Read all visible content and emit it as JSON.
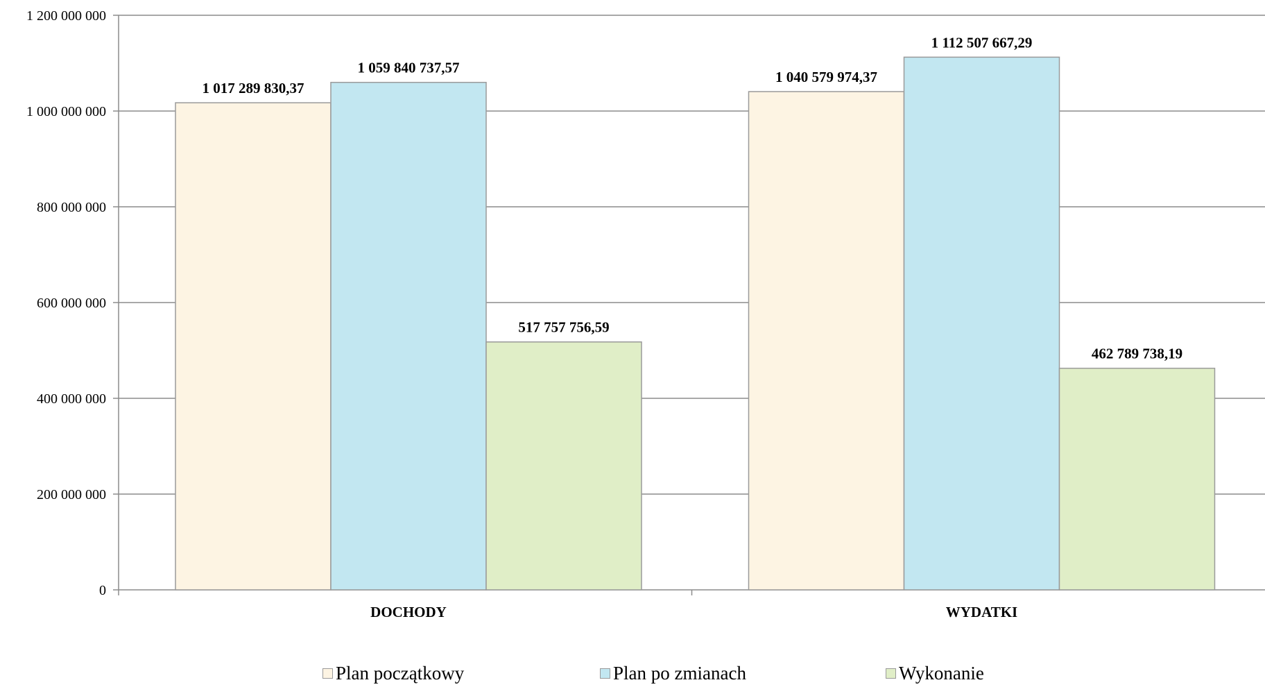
{
  "chart_data": {
    "type": "bar",
    "categories": [
      "DOCHODY",
      "WYDATKI"
    ],
    "series": [
      {
        "name": "Plan początkowy",
        "color": "#fdf4e3",
        "values": [
          1017289830.37,
          1040579974.37
        ],
        "labels": [
          "1 017 289 830,37",
          "1 040 579 974,37"
        ]
      },
      {
        "name": "Plan po zmianach",
        "color": "#c2e7f1",
        "values": [
          1059840737.57,
          1112507667.29
        ],
        "labels": [
          "1 059 840 737,57",
          "1 112 507 667,29"
        ]
      },
      {
        "name": "Wykonanie",
        "color": "#e0eec7",
        "values": [
          517757756.59,
          462789738.19
        ],
        "labels": [
          "517 757 756,59",
          "462 789 738,19"
        ]
      }
    ],
    "ylim": [
      0,
      1200000000
    ],
    "yticks": [
      0,
      200000000,
      400000000,
      600000000,
      800000000,
      1000000000,
      1200000000
    ],
    "ytick_labels": [
      "0",
      "200 000 000",
      "400 000 000",
      "600 000 000",
      "800 000 000",
      "1 000 000 000",
      "1 200 000 000"
    ],
    "grid": true,
    "legend_position": "bottom",
    "title": "",
    "xlabel": "",
    "ylabel": ""
  }
}
